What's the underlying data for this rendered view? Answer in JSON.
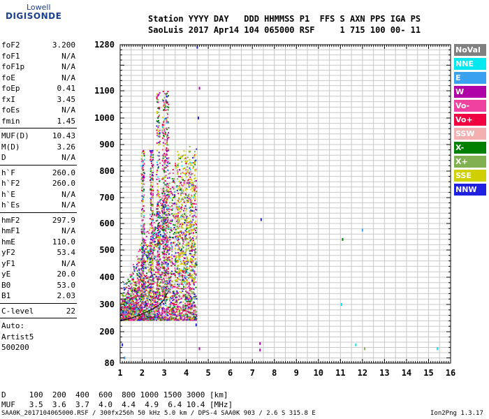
{
  "logo": {
    "top": "Lowell",
    "main": "DIGISONDE"
  },
  "header": {
    "line1": "Station YYYY DAY   DDD HHMMSS P1  FFS S AXN PPS IGA PS",
    "line2": "SaoLuis 2017 Apr14 104 065000 RSF     1 715 100 00- 11"
  },
  "params": {
    "group1": [
      {
        "label": "foF2",
        "value": "3.200"
      },
      {
        "label": "foF1",
        "value": "N/A"
      },
      {
        "label": "foF1p",
        "value": "N/A"
      },
      {
        "label": "foE",
        "value": "N/A"
      },
      {
        "label": "foEp",
        "value": "0.41"
      },
      {
        "label": "fxI",
        "value": "3.45"
      },
      {
        "label": "foEs",
        "value": "N/A"
      },
      {
        "label": "fmin",
        "value": "1.45"
      }
    ],
    "group2": [
      {
        "label": "MUF(D)",
        "value": "10.43"
      },
      {
        "label": "M(D)",
        "value": "3.26"
      },
      {
        "label": "D",
        "value": "N/A"
      }
    ],
    "group3": [
      {
        "label": "h`F",
        "value": "260.0"
      },
      {
        "label": "h`F2",
        "value": "260.0"
      },
      {
        "label": "h`E",
        "value": "N/A"
      },
      {
        "label": "h`Es",
        "value": "N/A"
      }
    ],
    "group4": [
      {
        "label": "hmF2",
        "value": "297.9"
      },
      {
        "label": "hmF1",
        "value": "N/A"
      },
      {
        "label": "hmE",
        "value": "110.0"
      },
      {
        "label": "yF2",
        "value": "53.4"
      },
      {
        "label": "yF1",
        "value": "N/A"
      },
      {
        "label": "yE",
        "value": "20.0"
      },
      {
        "label": "B0",
        "value": "53.0"
      },
      {
        "label": "B1",
        "value": "2.03"
      }
    ],
    "clevel": {
      "label": "C-level",
      "value": "22"
    },
    "auto": [
      "Auto:",
      "Artist5",
      "500200"
    ]
  },
  "legend": [
    {
      "label": "NoVal",
      "color": "#808080"
    },
    {
      "label": "NNE",
      "color": "#00e8f0"
    },
    {
      "label": "E",
      "color": "#3aa0f0"
    },
    {
      "label": "W",
      "color": "#b000a8"
    },
    {
      "label": "Vo-",
      "color": "#f040a0"
    },
    {
      "label": "Vo+",
      "color": "#f00040"
    },
    {
      "label": "SSW",
      "color": "#f4b0b0"
    },
    {
      "label": "X-",
      "color": "#008000"
    },
    {
      "label": "X+",
      "color": "#80b050"
    },
    {
      "label": "SSE",
      "color": "#d0d000"
    },
    {
      "label": "NNW",
      "color": "#2020e0"
    }
  ],
  "footer": {
    "d_line": "D     100  200  400  600  800 1000 1500 3000 [km]",
    "muf_line": "MUF   3.5  3.6  3.7  4.0  4.4  4.9  6.4 10.4 [MHz]",
    "file_line": "SAA0K_2017104065000.RSF / 300fx256h 50 kHz 5.0 km / DPS-4 SAA0K 903 / 2.6 S 315.8 E",
    "version": "Ion2Png 1.3.17"
  },
  "chart_data": {
    "type": "scatter",
    "title": "",
    "xlabel": "",
    "ylabel": "",
    "xlim": [
      1,
      16
    ],
    "ylim": [
      80,
      1280
    ],
    "x_ticks": [
      1,
      2,
      3,
      4,
      5,
      6,
      7,
      8,
      9,
      10,
      11,
      12,
      13,
      14,
      15,
      16
    ],
    "y_ticks": [
      80,
      200,
      300,
      400,
      500,
      600,
      700,
      800,
      900,
      1000,
      1100,
      1280
    ],
    "x_scale": "linear",
    "y_scale": "nonlinear",
    "grid": true,
    "legend_placement": "right",
    "trace": {
      "name": "",
      "x": [
        1.0,
        1.5,
        2.0,
        2.5,
        2.8,
        3.0,
        3.2
      ],
      "y": [
        240,
        250,
        265,
        285,
        300,
        320,
        350
      ]
    },
    "isolated_points": [
      {
        "x": 4.5,
        "y": 1270,
        "color": "#2020e0"
      },
      {
        "x": 4.6,
        "y": 1110,
        "color": "#b000a8"
      },
      {
        "x": 4.55,
        "y": 1000,
        "color": "#2020e0"
      },
      {
        "x": 7.4,
        "y": 615,
        "color": "#2020e0"
      },
      {
        "x": 12.0,
        "y": 575,
        "color": "#3aa0f0"
      },
      {
        "x": 11.1,
        "y": 540,
        "color": "#008000"
      },
      {
        "x": 11.05,
        "y": 300,
        "color": "#00e8f0"
      },
      {
        "x": 4.45,
        "y": 225,
        "color": "#2020e0"
      },
      {
        "x": 7.35,
        "y": 155,
        "color": "#b000a8"
      },
      {
        "x": 7.35,
        "y": 130,
        "color": "#b000a8"
      },
      {
        "x": 11.7,
        "y": 150,
        "color": "#00e8f0"
      },
      {
        "x": 12.1,
        "y": 135,
        "color": "#80b050"
      },
      {
        "x": 15.4,
        "y": 135,
        "color": "#00e8f0"
      },
      {
        "x": 4.6,
        "y": 135,
        "color": "#b000a8"
      },
      {
        "x": 1.1,
        "y": 150,
        "color": "#2020e0"
      },
      {
        "x": 1.2,
        "y": 100,
        "color": "#3aa0f0"
      }
    ]
  }
}
